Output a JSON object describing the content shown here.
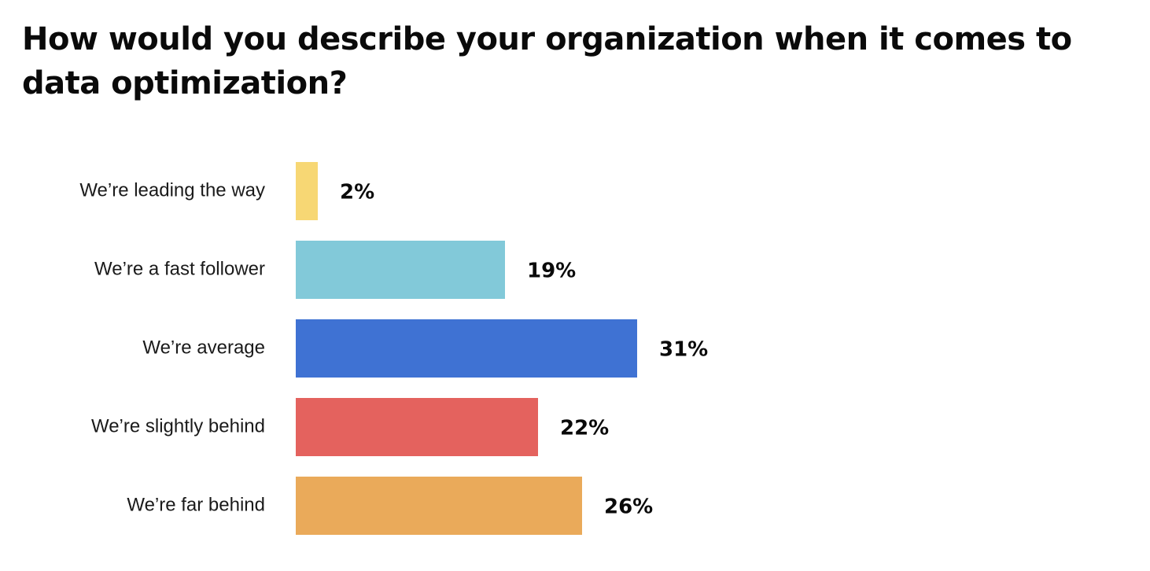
{
  "chart_data": {
    "type": "bar",
    "orientation": "horizontal",
    "title": "How would you describe your organization when it comes to data optimization?",
    "categories": [
      "We’re leading the way",
      "We’re a fast follower",
      "We’re average",
      "We’re slightly behind",
      "We’re far behind"
    ],
    "values": [
      2,
      19,
      31,
      22,
      26
    ],
    "value_labels": [
      "2%",
      "19%",
      "31%",
      "22%",
      "26%"
    ],
    "colors": [
      "#F7D774",
      "#82C9D9",
      "#3F72D3",
      "#E4625E",
      "#EAAA5A"
    ],
    "xlim": [
      0,
      100
    ],
    "grid": false,
    "legend": "none"
  }
}
